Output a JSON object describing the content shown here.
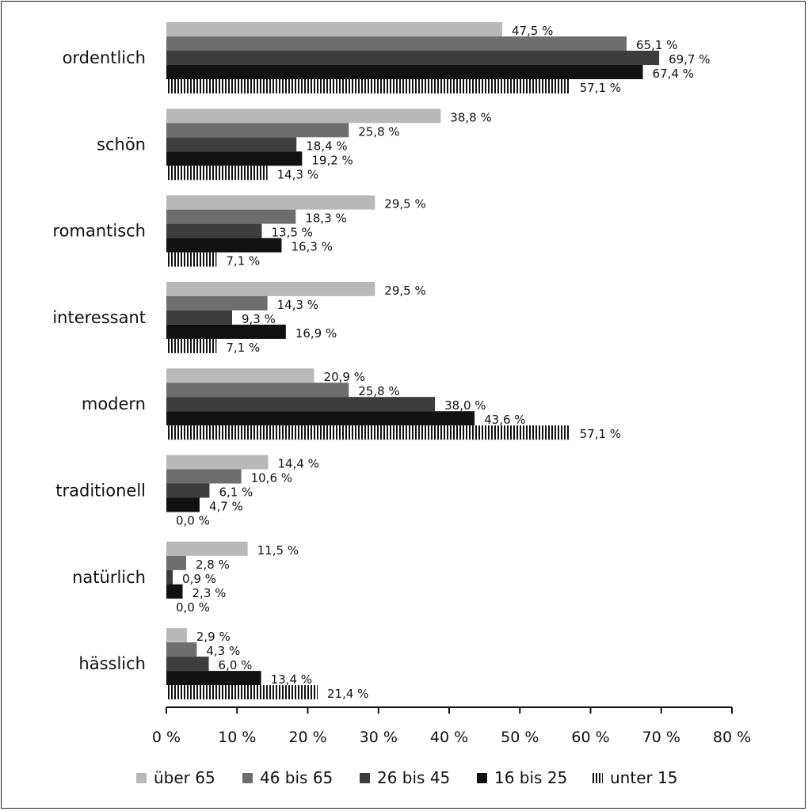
{
  "chart_data": {
    "type": "bar",
    "orientation": "horizontal",
    "categories": [
      "ordentlich",
      "schön",
      "romantisch",
      "interessant",
      "modern",
      "traditionell",
      "natürlich",
      "hässlich"
    ],
    "series": [
      {
        "name": "über 65",
        "values": [
          47.5,
          38.8,
          29.5,
          29.5,
          20.9,
          14.4,
          11.5,
          2.9
        ],
        "labels": [
          "47,5 %",
          "38,8 %",
          "29,5 %",
          "29,5 %",
          "20,9 %",
          "14,4 %",
          "11,5 %",
          "2,9 %"
        ],
        "color": "#b9b9b9",
        "pattern": "solid"
      },
      {
        "name": "46 bis 65",
        "values": [
          65.1,
          25.8,
          18.3,
          14.3,
          25.8,
          10.6,
          2.8,
          4.3
        ],
        "labels": [
          "65,1 %",
          "25,8 %",
          "18,3 %",
          "14,3 %",
          "25,8 %",
          "10,6 %",
          "2,8 %",
          "4,3 %"
        ],
        "color": "#6e6e6e",
        "pattern": "solid"
      },
      {
        "name": "26 bis 45",
        "values": [
          69.7,
          18.4,
          13.5,
          9.3,
          38.0,
          6.1,
          0.9,
          6.0
        ],
        "labels": [
          "69,7 %",
          "18,4 %",
          "13,5 %",
          "9,3 %",
          "38,0 %",
          "6,1 %",
          "0,9 %",
          "6,0 %"
        ],
        "color": "#3d3d3d",
        "pattern": "solid"
      },
      {
        "name": "16 bis 25",
        "values": [
          67.4,
          19.2,
          16.3,
          16.9,
          43.6,
          4.7,
          2.3,
          13.4
        ],
        "labels": [
          "67,4 %",
          "19,2 %",
          "16,3 %",
          "16,9 %",
          "43,6 %",
          "4,7 %",
          "2,3 %",
          "13,4 %"
        ],
        "color": "#111111",
        "pattern": "solid"
      },
      {
        "name": "unter 15",
        "values": [
          57.1,
          14.3,
          7.1,
          7.1,
          57.1,
          0.0,
          0.0,
          21.4
        ],
        "labels": [
          "57,1 %",
          "14,3 %",
          "7,1 %",
          "7,1 %",
          "57,1 %",
          "0,0 %",
          "0,0 %",
          "21,4 %"
        ],
        "color": "#111111",
        "pattern": "vertical-stripes"
      }
    ],
    "xlim": [
      0,
      80
    ],
    "xticks": [
      0,
      10,
      20,
      30,
      40,
      50,
      60,
      70,
      80
    ],
    "xtick_labels": [
      "0 %",
      "10 %",
      "20 %",
      "30 %",
      "40 %",
      "50 %",
      "60 %",
      "70 %",
      "80 %"
    ],
    "grid": false,
    "legend_position": "bottom"
  }
}
